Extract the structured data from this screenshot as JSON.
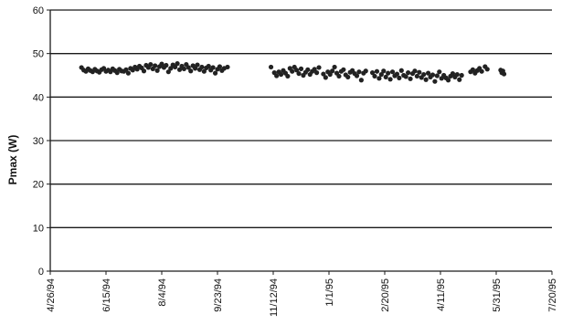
{
  "chart_data": {
    "type": "scatter",
    "title": "",
    "xlabel": "",
    "ylabel": "Pmax (W)",
    "ylim": [
      0,
      60
    ],
    "yticks": [
      0,
      10,
      20,
      30,
      40,
      50,
      60
    ],
    "xlim": [
      "1994-04-26",
      "1995-07-20"
    ],
    "xticks": [
      "1994-04-26",
      "1994-06-15",
      "1994-08-04",
      "1994-09-23",
      "1994-11-12",
      "1995-01-01",
      "1995-02-20",
      "1995-04-11",
      "1995-05-31",
      "1995-07-20"
    ],
    "xtick_labels": [
      "4/26/94",
      "6/15/94",
      "8/4/94",
      "9/23/94",
      "11/12/94",
      "1/1/95",
      "2/20/95",
      "4/11/95",
      "5/31/95",
      "7/20/95"
    ],
    "grid": "horizontal",
    "legend": "none",
    "marker_color": "#222222",
    "series": [
      {
        "points": [
          [
            "1994-05-24",
            46.8
          ],
          [
            "1994-05-26",
            46.2
          ],
          [
            "1994-05-28",
            45.9
          ],
          [
            "1994-05-30",
            46.5
          ],
          [
            "1994-06-01",
            46.1
          ],
          [
            "1994-06-03",
            45.8
          ],
          [
            "1994-06-05",
            46.4
          ],
          [
            "1994-06-07",
            46.0
          ],
          [
            "1994-06-09",
            45.7
          ],
          [
            "1994-06-11",
            46.3
          ],
          [
            "1994-06-13",
            46.6
          ],
          [
            "1994-06-15",
            45.9
          ],
          [
            "1994-06-17",
            46.2
          ],
          [
            "1994-06-19",
            45.8
          ],
          [
            "1994-06-21",
            46.5
          ],
          [
            "1994-06-23",
            46.1
          ],
          [
            "1994-06-25",
            45.6
          ],
          [
            "1994-06-27",
            46.4
          ],
          [
            "1994-06-29",
            46.0
          ],
          [
            "1994-07-01",
            45.9
          ],
          [
            "1994-07-03",
            46.3
          ],
          [
            "1994-07-05",
            45.5
          ],
          [
            "1994-07-07",
            46.6
          ],
          [
            "1994-07-09",
            46.2
          ],
          [
            "1994-07-11",
            46.9
          ],
          [
            "1994-07-13",
            46.4
          ],
          [
            "1994-07-15",
            47.1
          ],
          [
            "1994-07-17",
            46.7
          ],
          [
            "1994-07-19",
            46.0
          ],
          [
            "1994-07-21",
            47.3
          ],
          [
            "1994-07-23",
            46.8
          ],
          [
            "1994-07-25",
            47.5
          ],
          [
            "1994-07-27",
            46.5
          ],
          [
            "1994-07-29",
            47.2
          ],
          [
            "1994-07-31",
            46.1
          ],
          [
            "1994-08-02",
            47.0
          ],
          [
            "1994-08-04",
            47.6
          ],
          [
            "1994-08-06",
            46.8
          ],
          [
            "1994-08-08",
            47.3
          ],
          [
            "1994-08-10",
            45.8
          ],
          [
            "1994-08-12",
            46.6
          ],
          [
            "1994-08-14",
            47.4
          ],
          [
            "1994-08-16",
            46.9
          ],
          [
            "1994-08-18",
            47.7
          ],
          [
            "1994-08-20",
            46.3
          ],
          [
            "1994-08-22",
            47.1
          ],
          [
            "1994-08-24",
            46.5
          ],
          [
            "1994-08-26",
            47.5
          ],
          [
            "1994-08-28",
            46.8
          ],
          [
            "1994-08-30",
            46.0
          ],
          [
            "1994-09-01",
            47.2
          ],
          [
            "1994-09-03",
            46.6
          ],
          [
            "1994-09-05",
            47.4
          ],
          [
            "1994-09-07",
            46.3
          ],
          [
            "1994-09-09",
            46.9
          ],
          [
            "1994-09-11",
            45.9
          ],
          [
            "1994-09-13",
            46.7
          ],
          [
            "1994-09-15",
            47.1
          ],
          [
            "1994-09-17",
            46.2
          ],
          [
            "1994-09-19",
            46.8
          ],
          [
            "1994-09-21",
            45.5
          ],
          [
            "1994-09-23",
            46.4
          ],
          [
            "1994-09-25",
            47.0
          ],
          [
            "1994-09-27",
            46.1
          ],
          [
            "1994-09-29",
            46.6
          ],
          [
            "1994-10-02",
            46.9
          ],
          [
            "1994-11-10",
            46.9
          ],
          [
            "1994-11-13",
            45.6
          ],
          [
            "1994-11-15",
            44.9
          ],
          [
            "1994-11-17",
            45.8
          ],
          [
            "1994-11-19",
            45.2
          ],
          [
            "1994-11-21",
            46.1
          ],
          [
            "1994-11-23",
            45.5
          ],
          [
            "1994-11-25",
            44.8
          ],
          [
            "1994-11-27",
            46.6
          ],
          [
            "1994-11-29",
            45.9
          ],
          [
            "1994-12-01",
            46.9
          ],
          [
            "1994-12-03",
            46.2
          ],
          [
            "1994-12-05",
            45.4
          ],
          [
            "1994-12-07",
            46.5
          ],
          [
            "1994-12-09",
            45.0
          ],
          [
            "1994-12-11",
            45.7
          ],
          [
            "1994-12-13",
            46.3
          ],
          [
            "1994-12-15",
            45.2
          ],
          [
            "1994-12-17",
            45.9
          ],
          [
            "1994-12-19",
            46.4
          ],
          [
            "1994-12-21",
            45.6
          ],
          [
            "1994-12-23",
            46.8
          ],
          [
            "1994-12-27",
            45.3
          ],
          [
            "1994-12-29",
            44.5
          ],
          [
            "1994-12-31",
            45.8
          ],
          [
            "1995-01-02",
            45.2
          ],
          [
            "1995-01-04",
            46.0
          ],
          [
            "1995-01-06",
            46.9
          ],
          [
            "1995-01-08",
            45.5
          ],
          [
            "1995-01-10",
            44.8
          ],
          [
            "1995-01-12",
            45.9
          ],
          [
            "1995-01-14",
            46.3
          ],
          [
            "1995-01-16",
            45.1
          ],
          [
            "1995-01-18",
            44.6
          ],
          [
            "1995-01-20",
            45.7
          ],
          [
            "1995-01-22",
            46.1
          ],
          [
            "1995-01-24",
            45.4
          ],
          [
            "1995-01-26",
            44.9
          ],
          [
            "1995-01-28",
            45.8
          ],
          [
            "1995-01-30",
            43.9
          ],
          [
            "1995-02-01",
            45.5
          ],
          [
            "1995-02-03",
            46.0
          ],
          [
            "1995-02-09",
            45.6
          ],
          [
            "1995-02-11",
            44.8
          ],
          [
            "1995-02-13",
            45.9
          ],
          [
            "1995-02-15",
            44.3
          ],
          [
            "1995-02-17",
            45.2
          ],
          [
            "1995-02-19",
            46.0
          ],
          [
            "1995-02-21",
            44.6
          ],
          [
            "1995-02-23",
            45.5
          ],
          [
            "1995-02-25",
            44.1
          ],
          [
            "1995-02-27",
            45.8
          ],
          [
            "1995-03-01",
            44.9
          ],
          [
            "1995-03-03",
            45.3
          ],
          [
            "1995-03-05",
            44.4
          ],
          [
            "1995-03-07",
            46.1
          ],
          [
            "1995-03-09",
            45.0
          ],
          [
            "1995-03-11",
            44.7
          ],
          [
            "1995-03-13",
            45.6
          ],
          [
            "1995-03-15",
            44.2
          ],
          [
            "1995-03-17",
            45.4
          ],
          [
            "1995-03-19",
            46.0
          ],
          [
            "1995-03-21",
            44.8
          ],
          [
            "1995-03-23",
            45.7
          ],
          [
            "1995-03-25",
            44.5
          ],
          [
            "1995-03-27",
            45.2
          ],
          [
            "1995-03-29",
            44.0
          ],
          [
            "1995-03-31",
            45.5
          ],
          [
            "1995-04-02",
            44.6
          ],
          [
            "1995-04-04",
            45.1
          ],
          [
            "1995-04-06",
            43.6
          ],
          [
            "1995-04-08",
            44.9
          ],
          [
            "1995-04-10",
            45.8
          ],
          [
            "1995-04-12",
            44.3
          ],
          [
            "1995-04-14",
            45.0
          ],
          [
            "1995-04-16",
            44.4
          ],
          [
            "1995-04-18",
            43.9
          ],
          [
            "1995-04-20",
            44.8
          ],
          [
            "1995-04-22",
            45.4
          ],
          [
            "1995-04-24",
            44.6
          ],
          [
            "1995-04-26",
            45.2
          ],
          [
            "1995-04-28",
            44.0
          ],
          [
            "1995-04-30",
            45.0
          ],
          [
            "1995-05-08",
            45.8
          ],
          [
            "1995-05-10",
            46.3
          ],
          [
            "1995-05-12",
            45.5
          ],
          [
            "1995-05-14",
            46.1
          ],
          [
            "1995-05-16",
            46.6
          ],
          [
            "1995-05-18",
            45.9
          ],
          [
            "1995-05-21",
            47.0
          ],
          [
            "1995-05-23",
            46.4
          ],
          [
            "1995-06-04",
            46.2
          ],
          [
            "1995-06-05",
            45.6
          ],
          [
            "1995-06-06",
            46.0
          ],
          [
            "1995-06-07",
            45.3
          ]
        ]
      }
    ]
  }
}
